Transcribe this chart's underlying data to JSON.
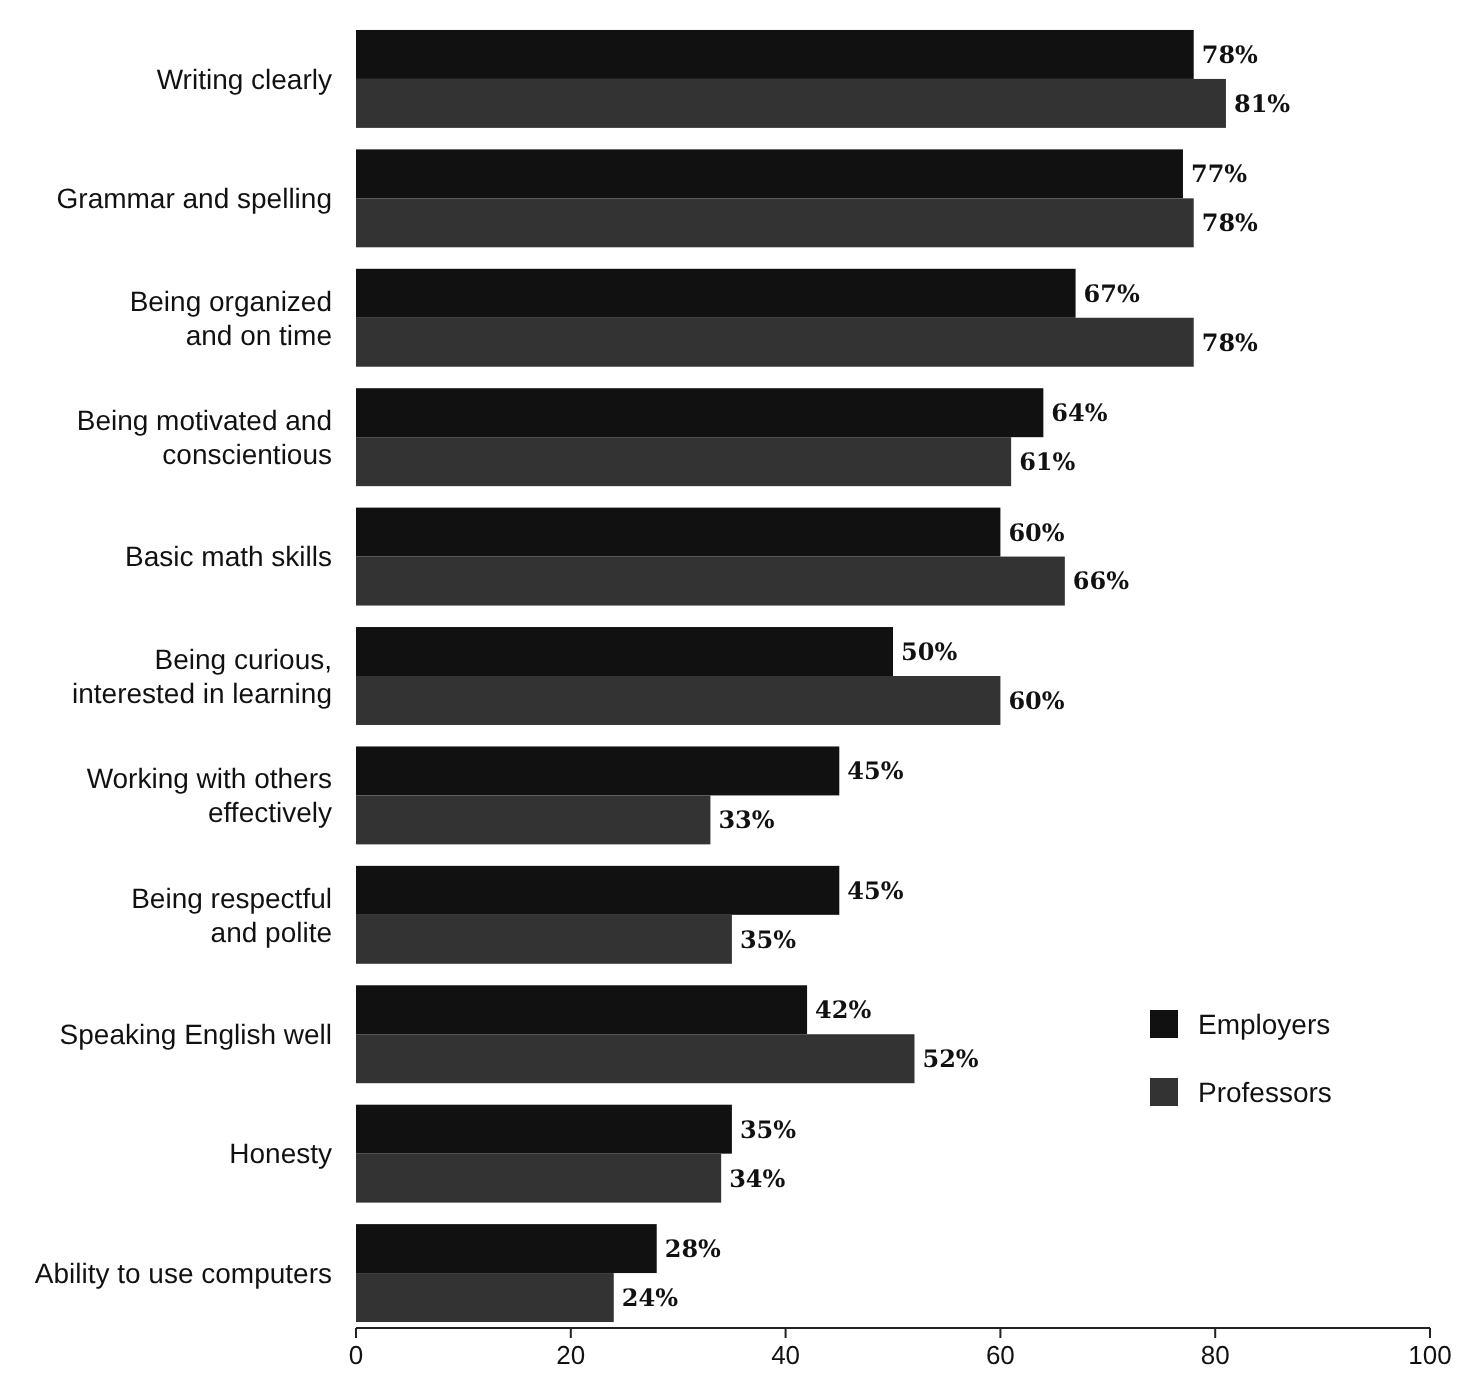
{
  "chart_data": {
    "type": "bar",
    "orientation": "horizontal",
    "categories": [
      "Writing clearly",
      "Grammar and spelling",
      "Being organized\nand on time",
      "Being motivated and\nconscientious",
      "Basic math skills",
      "Being curious,\ninterested in learning",
      "Working with others\neffectively",
      "Being respectful\nand polite",
      "Speaking English well",
      "Honesty",
      "Ability to use computers"
    ],
    "series": [
      {
        "name": "Employers",
        "color": "#111111",
        "values": [
          78,
          77,
          67,
          64,
          60,
          50,
          45,
          45,
          42,
          35,
          28
        ],
        "value_labels": [
          "78%",
          "77%",
          "67%",
          "64%",
          "60%",
          "50%",
          "45%",
          "45%",
          "42%",
          "35%",
          "28%"
        ]
      },
      {
        "name": "Professors",
        "color": "#333333",
        "values": [
          81,
          78,
          78,
          61,
          66,
          60,
          33,
          35,
          52,
          34,
          24
        ],
        "value_labels": [
          "81%",
          "78%",
          "78%",
          "61%",
          "66%",
          "60%",
          "33%",
          "35%",
          "52%",
          "34%",
          "24%"
        ]
      }
    ],
    "xlim": [
      0,
      100
    ],
    "xticks": [
      0,
      20,
      40,
      60,
      80,
      100
    ],
    "legend": "right",
    "grid": false
  }
}
